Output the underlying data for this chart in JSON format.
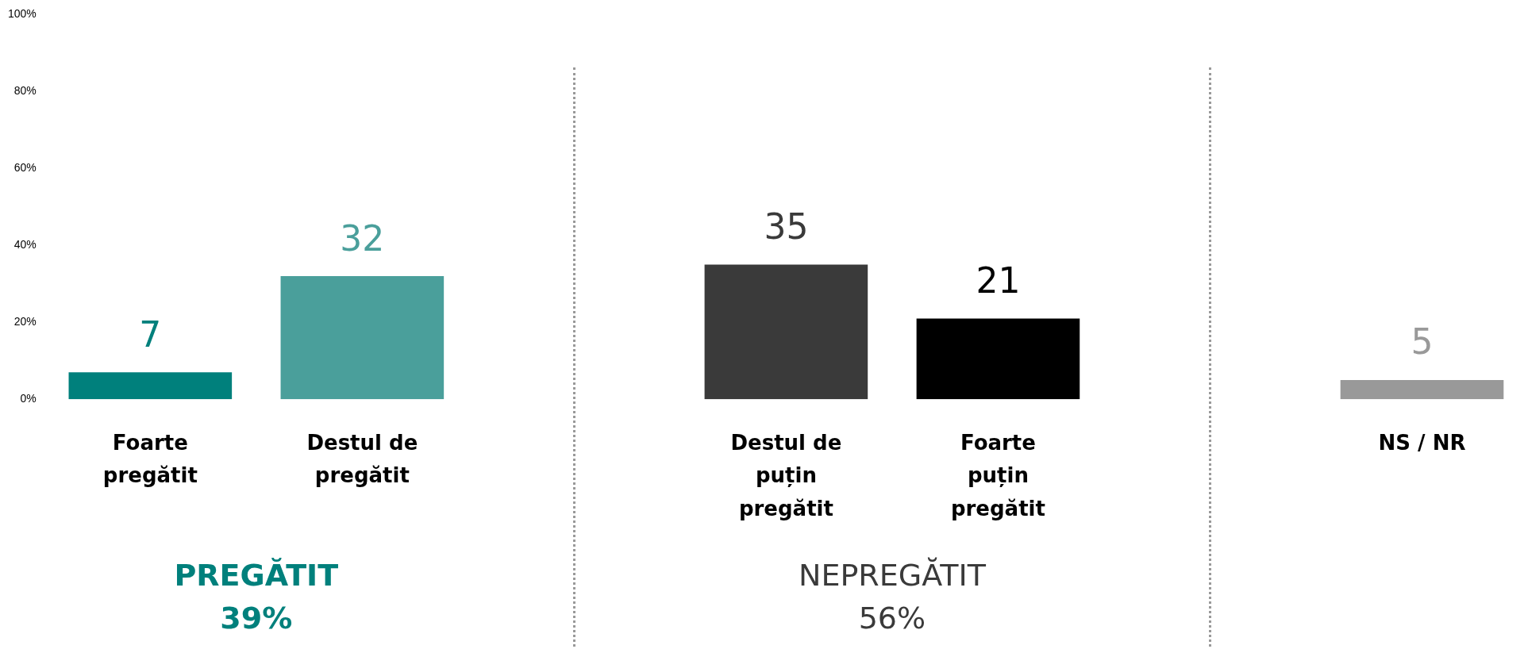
{
  "chart_data": {
    "type": "bar",
    "categories": [
      "Foarte pregătit",
      "Destul de pregătit",
      null,
      "Destul de puțin pregătit",
      "Foarte puțin pregătit",
      null,
      "NS / NR"
    ],
    "values": [
      7,
      32,
      null,
      35,
      21,
      null,
      5
    ],
    "colors": [
      "#00807c",
      "#4a9f9b",
      null,
      "#3a3a3a",
      "#000000",
      null,
      "#999999"
    ],
    "ylim": [
      0,
      100
    ],
    "yticks": [
      {
        "value": 0,
        "label": "0%"
      },
      {
        "value": 20,
        "label": "20%"
      },
      {
        "value": 40,
        "label": "40%"
      },
      {
        "value": 60,
        "label": "60%"
      },
      {
        "value": 80,
        "label": "80%"
      },
      {
        "value": 100,
        "label": "100%"
      }
    ],
    "grid": "x",
    "legend": false,
    "data_labels": true,
    "annotations": [
      "PREGĂTIT 39%",
      "NEPREGĂTIT 56%"
    ]
  }
}
